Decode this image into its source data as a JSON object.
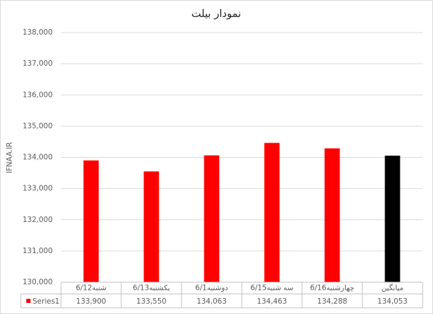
{
  "chart_data": {
    "type": "bar",
    "title": "نمودار بیلت",
    "y_label": "IFNAA.IR",
    "categories": [
      "شنبه6/12",
      "یکشنبه6/13",
      "دوشنبه6/1",
      "سه شنبه6/15",
      "چهارشنبه6/16",
      "میانگین"
    ],
    "series": [
      {
        "name": "Series1",
        "color": "#ff0000",
        "colors": [
          "#ff0000",
          "#ff0000",
          "#ff0000",
          "#ff0000",
          "#ff0000",
          "#000000"
        ],
        "values": [
          133900,
          133550,
          134063,
          134463,
          134288,
          134053
        ],
        "value_labels": [
          "133,900",
          "133,550",
          "134,063",
          "134,463",
          "134,288",
          "134,053"
        ]
      }
    ],
    "ylim": [
      130000,
      138000
    ],
    "yticks": [
      {
        "value": 130000,
        "label": "130,000"
      },
      {
        "value": 131000,
        "label": "131,000"
      },
      {
        "value": 132000,
        "label": "132,000"
      },
      {
        "value": 133000,
        "label": "133,000"
      },
      {
        "value": 134000,
        "label": "134,000"
      },
      {
        "value": 135000,
        "label": "135,000"
      },
      {
        "value": 136000,
        "label": "136,000"
      },
      {
        "value": 137000,
        "label": "137,000"
      },
      {
        "value": 138000,
        "label": "138,000"
      }
    ],
    "grid": true,
    "data_table": true
  }
}
